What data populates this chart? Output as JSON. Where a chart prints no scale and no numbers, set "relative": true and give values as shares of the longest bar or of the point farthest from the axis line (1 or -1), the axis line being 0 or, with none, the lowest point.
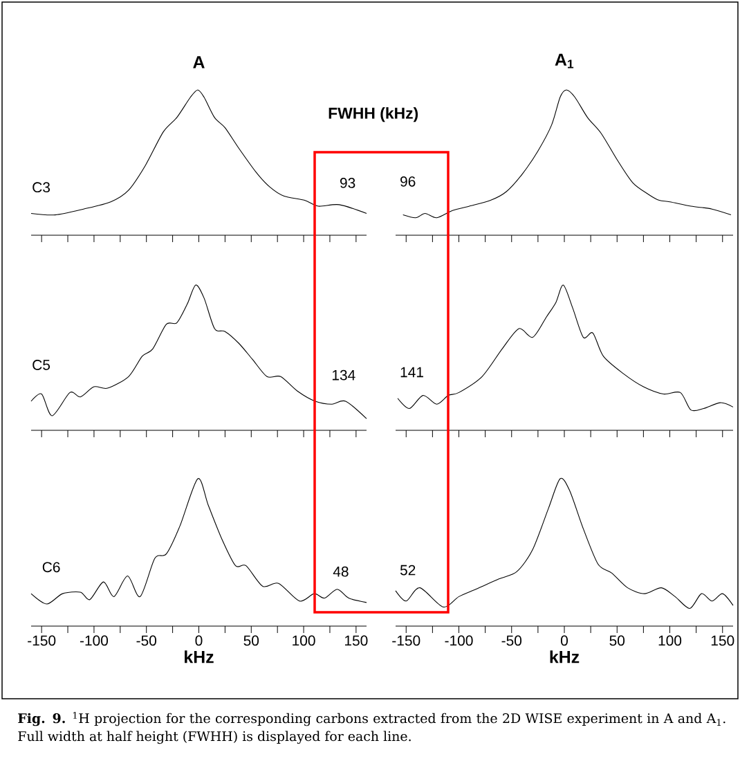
{
  "chart_data": [
    {
      "type": "line",
      "title": "A",
      "relative": true,
      "color": "#000000",
      "xlim": [
        -160,
        160
      ],
      "tick_labels": false,
      "xticks": [
        -150,
        {
          "value": -125,
          "label": null
        },
        -100,
        {
          "value": -75,
          "label": null
        },
        -50,
        {
          "value": -25,
          "label": null
        },
        0,
        {
          "value": 25,
          "label": null
        },
        50,
        {
          "value": 75,
          "label": null
        },
        100,
        {
          "value": 125,
          "label": null
        },
        150
      ],
      "x": [
        -160,
        -137,
        -110,
        -84,
        -67,
        -51,
        -34,
        -21,
        -8,
        -1,
        5,
        15,
        25,
        38,
        55,
        68,
        81,
        101,
        114,
        134,
        160
      ],
      "values": [
        0.15,
        0.14,
        0.18,
        0.23,
        0.31,
        0.48,
        0.71,
        0.81,
        0.95,
        1.0,
        0.95,
        0.81,
        0.74,
        0.6,
        0.43,
        0.33,
        0.27,
        0.24,
        0.2,
        0.21,
        0.15
      ],
      "annotations": [
        "C3",
        "93",
        "FWHH (kHz)",
        "**Fig. 9.** $^{1}$H projection for the corresponding carbons extracted from the 2D WISE experiment in A and A$_{1}$. Full width at half height (FWHH) is displayed for each line."
      ]
    },
    {
      "type": "line",
      "title": "A$_{1}$",
      "relative": true,
      "color": "#000000",
      "xlim": [
        -160,
        160
      ],
      "tick_labels": false,
      "xticks": [
        -150,
        {
          "value": -125,
          "label": null
        },
        -100,
        {
          "value": -75,
          "label": null
        },
        -50,
        {
          "value": -25,
          "label": null
        },
        0,
        {
          "value": 25,
          "label": null
        },
        50,
        {
          "value": 75,
          "label": null
        },
        100,
        {
          "value": 125,
          "label": null
        },
        150
      ],
      "x": [
        -153,
        -141,
        -132,
        -121,
        -106,
        -90,
        -70,
        -55,
        -40,
        -25,
        -12,
        -4,
        2,
        10,
        22,
        35,
        50,
        65,
        80,
        90,
        100,
        120,
        140,
        158
      ],
      "values": [
        0.14,
        0.12,
        0.15,
        0.12,
        0.17,
        0.2,
        0.24,
        0.3,
        0.42,
        0.58,
        0.76,
        0.95,
        1.0,
        0.95,
        0.81,
        0.7,
        0.52,
        0.36,
        0.28,
        0.24,
        0.23,
        0.2,
        0.18,
        0.14
      ],
      "annotations": [
        "96"
      ]
    },
    {
      "type": "line",
      "relative": true,
      "color": "#000000",
      "xlim": [
        -160,
        160
      ],
      "tick_labels": false,
      "xticks": [
        -150,
        {
          "value": -125,
          "label": null
        },
        -100,
        {
          "value": -75,
          "label": null
        },
        -50,
        {
          "value": -25,
          "label": null
        },
        0,
        {
          "value": 25,
          "label": null
        },
        50,
        {
          "value": 75,
          "label": null
        },
        100,
        {
          "value": 125,
          "label": null
        },
        150
      ],
      "x": [
        -160,
        -150,
        -140,
        -123,
        -113,
        -100,
        -87,
        -67,
        -54,
        -44,
        -31,
        -21,
        -11,
        -3,
        5,
        15,
        25,
        38,
        51,
        65,
        78,
        94,
        111,
        127,
        140,
        160
      ],
      "values": [
        0.2,
        0.25,
        0.1,
        0.26,
        0.23,
        0.3,
        0.29,
        0.37,
        0.51,
        0.56,
        0.73,
        0.74,
        0.87,
        1.0,
        0.91,
        0.7,
        0.68,
        0.6,
        0.49,
        0.37,
        0.37,
        0.27,
        0.2,
        0.18,
        0.2,
        0.08
      ],
      "annotations": [
        "C5",
        "134"
      ]
    },
    {
      "type": "line",
      "relative": true,
      "color": "#000000",
      "xlim": [
        -160,
        160
      ],
      "tick_labels": false,
      "xticks": [
        -150,
        {
          "value": -125,
          "label": null
        },
        -100,
        {
          "value": -75,
          "label": null
        },
        -50,
        {
          "value": -25,
          "label": null
        },
        0,
        {
          "value": 25,
          "label": null
        },
        50,
        {
          "value": 75,
          "label": null
        },
        100,
        {
          "value": 125,
          "label": null
        },
        150
      ],
      "x": [
        -158,
        -147,
        -134,
        -121,
        -110,
        -100,
        -78,
        -59,
        -43,
        -30,
        -17,
        -8,
        -1,
        8,
        18,
        27,
        37,
        56,
        75,
        94,
        110,
        120,
        132,
        148,
        160
      ],
      "values": [
        0.22,
        0.15,
        0.24,
        0.18,
        0.24,
        0.26,
        0.37,
        0.56,
        0.7,
        0.64,
        0.78,
        0.88,
        1.0,
        0.84,
        0.64,
        0.67,
        0.51,
        0.39,
        0.3,
        0.25,
        0.26,
        0.14,
        0.15,
        0.19,
        0.16
      ],
      "annotations": [
        "141"
      ]
    },
    {
      "type": "line",
      "relative": true,
      "color": "#000000",
      "xlim": [
        -160,
        160
      ],
      "tick_labels": "x",
      "xlabel": "kHz",
      "xticks": [
        -150,
        {
          "value": -125,
          "label": null
        },
        -100,
        {
          "value": -75,
          "label": null
        },
        -50,
        {
          "value": -25,
          "label": null
        },
        0,
        {
          "value": 25,
          "label": null
        },
        50,
        {
          "value": 75,
          "label": null
        },
        100,
        {
          "value": 125,
          "label": null
        },
        150
      ],
      "x": [
        -160,
        -145,
        -130,
        -113,
        -104,
        -91,
        -81,
        -68,
        -56,
        -42,
        -31,
        -18,
        -1,
        9,
        22,
        35,
        45,
        61,
        76,
        96,
        110,
        120,
        132,
        143,
        160
      ],
      "values": [
        0.22,
        0.15,
        0.22,
        0.23,
        0.18,
        0.3,
        0.2,
        0.34,
        0.2,
        0.46,
        0.49,
        0.68,
        1.0,
        0.82,
        0.59,
        0.41,
        0.41,
        0.27,
        0.29,
        0.17,
        0.22,
        0.19,
        0.25,
        0.19,
        0.16
      ],
      "annotations": [
        "C6",
        "48"
      ]
    },
    {
      "type": "line",
      "relative": true,
      "color": "#000000",
      "xlim": [
        -160,
        160
      ],
      "tick_labels": "x",
      "xlabel": "kHz",
      "xticks": [
        -150,
        {
          "value": -125,
          "label": null
        },
        -100,
        {
          "value": -75,
          "label": null
        },
        -50,
        {
          "value": -25,
          "label": null
        },
        0,
        {
          "value": 25,
          "label": null
        },
        50,
        {
          "value": 75,
          "label": null
        },
        100,
        {
          "value": 125,
          "label": null
        },
        150
      ],
      "x": [
        -160,
        -150,
        -137,
        -115,
        -100,
        -84,
        -62,
        -45,
        -30,
        -15,
        -4,
        5,
        18,
        32,
        45,
        60,
        76,
        92,
        105,
        119,
        130,
        140,
        150,
        160
      ],
      "values": [
        0.24,
        0.17,
        0.26,
        0.13,
        0.2,
        0.25,
        0.32,
        0.37,
        0.52,
        0.8,
        1.0,
        0.92,
        0.66,
        0.42,
        0.36,
        0.26,
        0.22,
        0.26,
        0.2,
        0.12,
        0.22,
        0.17,
        0.22,
        0.14
      ],
      "annotations": [
        "52"
      ]
    }
  ]
}
